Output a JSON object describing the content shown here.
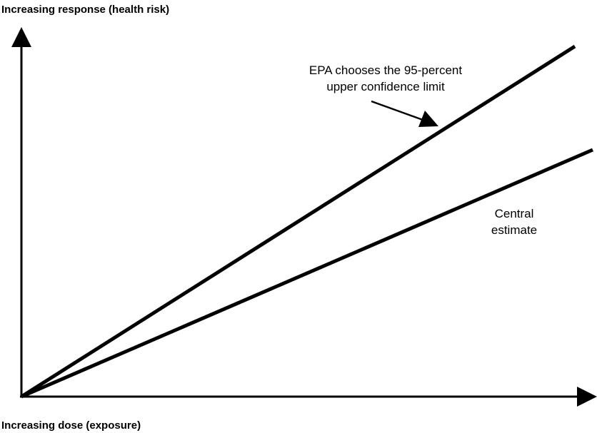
{
  "axes": {
    "y_label": "Increasing response (health risk)",
    "x_label": "Increasing dose (exposure)"
  },
  "lines": [
    {
      "label": [
        "EPA chooses the 95-percent",
        "upper confidence limit"
      ]
    },
    {
      "label": [
        "Central",
        "estimate"
      ]
    }
  ]
}
